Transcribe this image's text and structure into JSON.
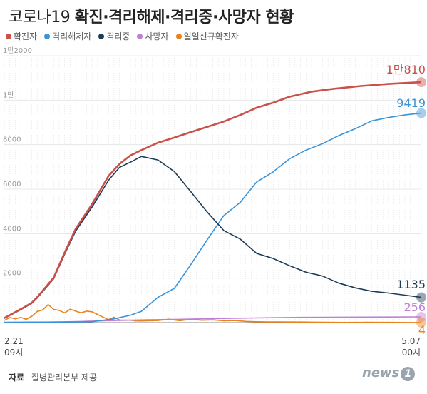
{
  "title": {
    "light": "코로나19",
    "bold": "확진·격리해제·격리중·사망자 현황"
  },
  "source": {
    "key": "자료",
    "text": "질병관리본부 제공"
  },
  "logo": {
    "text": "news",
    "mark": "1"
  },
  "x_start": {
    "date": "2.21",
    "time": "09시"
  },
  "x_end": {
    "date": "5.07",
    "time": "00시"
  },
  "chart_data": {
    "type": "line",
    "title": "코로나19 확진·격리해제·격리중·사망자 현황",
    "ylim": [
      0,
      12000
    ],
    "yticks": [
      {
        "value": 2000,
        "label": "2000"
      },
      {
        "value": 4000,
        "label": "4000"
      },
      {
        "value": 6000,
        "label": "6000"
      },
      {
        "value": 8000,
        "label": "8000"
      },
      {
        "value": 10000,
        "label": "1만"
      },
      {
        "value": 12000,
        "label": "1만2000"
      }
    ],
    "grid": true,
    "legend": "top-left",
    "x_count": 77,
    "series": [
      {
        "name": "확진자",
        "color": "#c9514a",
        "end_label": "1만810",
        "points": [
          [
            0,
            204
          ],
          [
            3,
            602
          ],
          [
            5,
            893
          ],
          [
            6,
            1146
          ],
          [
            9,
            2022
          ],
          [
            11,
            3150
          ],
          [
            13,
            4212
          ],
          [
            16,
            5328
          ],
          [
            19,
            6593
          ],
          [
            21,
            7134
          ],
          [
            23,
            7513
          ],
          [
            25,
            7755
          ],
          [
            28,
            8086
          ],
          [
            31,
            8320
          ],
          [
            34,
            8565
          ],
          [
            37,
            8799
          ],
          [
            40,
            9037
          ],
          [
            43,
            9332
          ],
          [
            46,
            9661
          ],
          [
            49,
            9887
          ],
          [
            52,
            10156
          ],
          [
            56,
            10384
          ],
          [
            60,
            10512
          ],
          [
            65,
            10635
          ],
          [
            70,
            10728
          ],
          [
            76,
            10810
          ]
        ]
      },
      {
        "name": "격리해제자",
        "color": "#3b93d8",
        "end_label": "9419",
        "points": [
          [
            0,
            16
          ],
          [
            6,
            22
          ],
          [
            10,
            27
          ],
          [
            14,
            30
          ],
          [
            16,
            41
          ],
          [
            20,
            166
          ],
          [
            23,
            333
          ],
          [
            25,
            510
          ],
          [
            28,
            1137
          ],
          [
            31,
            1540
          ],
          [
            34,
            2612
          ],
          [
            37,
            3730
          ],
          [
            40,
            4811
          ],
          [
            43,
            5408
          ],
          [
            46,
            6325
          ],
          [
            49,
            6776
          ],
          [
            52,
            7368
          ],
          [
            55,
            7757
          ],
          [
            58,
            8042
          ],
          [
            61,
            8411
          ],
          [
            64,
            8717
          ],
          [
            67,
            9072
          ],
          [
            70,
            9217
          ],
          [
            73,
            9333
          ],
          [
            76,
            9419
          ]
        ]
      },
      {
        "name": "격리중",
        "color": "#1c3b57",
        "end_label": "1135",
        "points": [
          [
            0,
            188
          ],
          [
            3,
            580
          ],
          [
            5,
            862
          ],
          [
            6,
            1108
          ],
          [
            9,
            1972
          ],
          [
            11,
            3080
          ],
          [
            13,
            4113
          ],
          [
            16,
            5202
          ],
          [
            19,
            6402
          ],
          [
            21,
            6980
          ],
          [
            23,
            7212
          ],
          [
            25,
            7470
          ],
          [
            28,
            7313
          ],
          [
            31,
            6789
          ],
          [
            34,
            5883
          ],
          [
            37,
            4966
          ],
          [
            40,
            4143
          ],
          [
            43,
            3758
          ],
          [
            46,
            3112
          ],
          [
            49,
            2886
          ],
          [
            52,
            2557
          ],
          [
            55,
            2266
          ],
          [
            58,
            2096
          ],
          [
            61,
            1774
          ],
          [
            64,
            1564
          ],
          [
            67,
            1409
          ],
          [
            70,
            1332
          ],
          [
            73,
            1236
          ],
          [
            76,
            1135
          ]
        ]
      },
      {
        "name": "사망자",
        "color": "#c07fd6",
        "end_label": "256",
        "points": [
          [
            0,
            2
          ],
          [
            6,
            12
          ],
          [
            10,
            28
          ],
          [
            14,
            50
          ],
          [
            18,
            80
          ],
          [
            22,
            104
          ],
          [
            26,
            126
          ],
          [
            30,
            139
          ],
          [
            34,
            162
          ],
          [
            38,
            177
          ],
          [
            42,
            192
          ],
          [
            46,
            208
          ],
          [
            50,
            225
          ],
          [
            54,
            234
          ],
          [
            58,
            240
          ],
          [
            62,
            244
          ],
          [
            66,
            248
          ],
          [
            70,
            250
          ],
          [
            76,
            256
          ]
        ]
      },
      {
        "name": "일일신규확진자",
        "color": "#e8821e",
        "end_label": "4",
        "points": [
          [
            0,
            100
          ],
          [
            1,
            229
          ],
          [
            2,
            169
          ],
          [
            3,
            231
          ],
          [
            4,
            144
          ],
          [
            5,
            284
          ],
          [
            6,
            505
          ],
          [
            7,
            571
          ],
          [
            8,
            813
          ],
          [
            9,
            594
          ],
          [
            10,
            553
          ],
          [
            11,
            438
          ],
          [
            12,
            600
          ],
          [
            13,
            516
          ],
          [
            14,
            438
          ],
          [
            15,
            518
          ],
          [
            16,
            483
          ],
          [
            17,
            367
          ],
          [
            18,
            248
          ],
          [
            19,
            131
          ],
          [
            20,
            242
          ],
          [
            21,
            114
          ],
          [
            22,
            110
          ],
          [
            23,
            107
          ],
          [
            24,
            76
          ],
          [
            25,
            74
          ],
          [
            26,
            84
          ],
          [
            28,
            93
          ],
          [
            30,
            152
          ],
          [
            32,
            87
          ],
          [
            34,
            146
          ],
          [
            36,
            105
          ],
          [
            38,
            123
          ],
          [
            40,
            81
          ],
          [
            42,
            94
          ],
          [
            44,
            53
          ],
          [
            46,
            39
          ],
          [
            48,
            30
          ],
          [
            50,
            32
          ],
          [
            52,
            25
          ],
          [
            54,
            27
          ],
          [
            56,
            18
          ],
          [
            58,
            13
          ],
          [
            60,
            11
          ],
          [
            62,
            8
          ],
          [
            64,
            10
          ],
          [
            66,
            14
          ],
          [
            68,
            9
          ],
          [
            70,
            10
          ],
          [
            72,
            6
          ],
          [
            74,
            3
          ],
          [
            76,
            4
          ]
        ]
      }
    ]
  }
}
